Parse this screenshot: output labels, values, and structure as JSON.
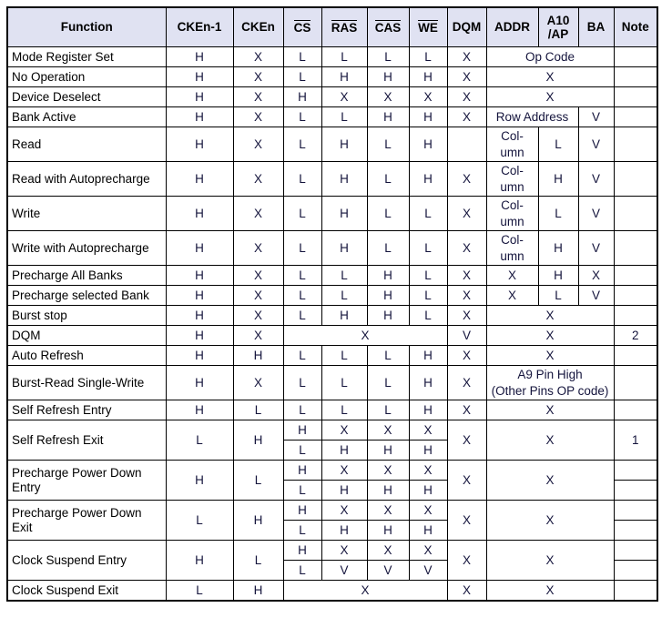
{
  "colors": {
    "header_bg": "#e0e2f2",
    "border": "#000000",
    "header_text": "#000000",
    "label_text": "#000000",
    "value_text": "#14143c"
  },
  "table": {
    "header": [
      {
        "t": "Function"
      },
      {
        "t": "CKEn-1"
      },
      {
        "t": "CKEn"
      },
      {
        "t": "CS",
        "ov": 1
      },
      {
        "t": "RAS",
        "ov": 1
      },
      {
        "t": "CAS",
        "ov": 1
      },
      {
        "t": "WE",
        "ov": 1
      },
      {
        "t": "DQM"
      },
      {
        "t": "ADDR"
      },
      {
        "t": "A10\n/AP"
      },
      {
        "t": "BA"
      },
      {
        "t": "Note"
      }
    ],
    "rows": [
      {
        "cells": [
          {
            "t": "Mode Register Set",
            "fn": 1
          },
          {
            "t": "H"
          },
          {
            "t": "X"
          },
          {
            "t": "L"
          },
          {
            "t": "L"
          },
          {
            "t": "L"
          },
          {
            "t": "L"
          },
          {
            "t": "X"
          },
          {
            "t": "Op Code",
            "cs": 3
          },
          {
            "t": ""
          }
        ]
      },
      {
        "cells": [
          {
            "t": "No Operation",
            "fn": 1
          },
          {
            "t": "H"
          },
          {
            "t": "X"
          },
          {
            "t": "L"
          },
          {
            "t": "H"
          },
          {
            "t": "H"
          },
          {
            "t": "H"
          },
          {
            "t": "X"
          },
          {
            "t": "X",
            "cs": 3
          },
          {
            "t": ""
          }
        ]
      },
      {
        "cells": [
          {
            "t": "Device Deselect",
            "fn": 1
          },
          {
            "t": "H"
          },
          {
            "t": "X"
          },
          {
            "t": "H"
          },
          {
            "t": "X"
          },
          {
            "t": "X"
          },
          {
            "t": "X"
          },
          {
            "t": "X"
          },
          {
            "t": "X",
            "cs": 3
          },
          {
            "t": ""
          }
        ]
      },
      {
        "cells": [
          {
            "t": "Bank Active",
            "fn": 1
          },
          {
            "t": "H"
          },
          {
            "t": "X"
          },
          {
            "t": "L"
          },
          {
            "t": "L"
          },
          {
            "t": "H"
          },
          {
            "t": "H"
          },
          {
            "t": "X"
          },
          {
            "t": "Row Address",
            "cs": 2
          },
          {
            "t": "V"
          },
          {
            "t": ""
          }
        ]
      },
      {
        "cells": [
          {
            "t": "Read",
            "fn": 1
          },
          {
            "t": "H"
          },
          {
            "t": "X"
          },
          {
            "t": "L"
          },
          {
            "t": "H"
          },
          {
            "t": "L"
          },
          {
            "t": "H"
          },
          {
            "t": ""
          },
          {
            "t": "Col-\numn"
          },
          {
            "t": "L"
          },
          {
            "t": "V"
          },
          {
            "t": ""
          }
        ]
      },
      {
        "cells": [
          {
            "t": "Read with Autoprecharge",
            "fn": 1
          },
          {
            "t": "H"
          },
          {
            "t": "X"
          },
          {
            "t": "L"
          },
          {
            "t": "H"
          },
          {
            "t": "L"
          },
          {
            "t": "H"
          },
          {
            "t": "X"
          },
          {
            "t": "Col-\numn"
          },
          {
            "t": "H"
          },
          {
            "t": "V"
          },
          {
            "t": ""
          }
        ]
      },
      {
        "cells": [
          {
            "t": "Write",
            "fn": 1
          },
          {
            "t": "H"
          },
          {
            "t": "X"
          },
          {
            "t": "L"
          },
          {
            "t": "H"
          },
          {
            "t": "L"
          },
          {
            "t": "L"
          },
          {
            "t": "X"
          },
          {
            "t": "Col-\numn"
          },
          {
            "t": "L"
          },
          {
            "t": "V"
          },
          {
            "t": ""
          }
        ]
      },
      {
        "cells": [
          {
            "t": "Write with Autoprecharge",
            "fn": 1
          },
          {
            "t": "H"
          },
          {
            "t": "X"
          },
          {
            "t": "L"
          },
          {
            "t": "H"
          },
          {
            "t": "L"
          },
          {
            "t": "L"
          },
          {
            "t": "X"
          },
          {
            "t": "Col-\numn"
          },
          {
            "t": "H"
          },
          {
            "t": "V"
          },
          {
            "t": ""
          }
        ]
      },
      {
        "cells": [
          {
            "t": "Precharge All Banks",
            "fn": 1
          },
          {
            "t": "H"
          },
          {
            "t": "X"
          },
          {
            "t": "L"
          },
          {
            "t": "L"
          },
          {
            "t": "H"
          },
          {
            "t": "L"
          },
          {
            "t": "X"
          },
          {
            "t": "X"
          },
          {
            "t": "H"
          },
          {
            "t": "X"
          },
          {
            "t": ""
          }
        ]
      },
      {
        "cells": [
          {
            "t": "Precharge selected Bank",
            "fn": 1
          },
          {
            "t": "H"
          },
          {
            "t": "X"
          },
          {
            "t": "L"
          },
          {
            "t": "L"
          },
          {
            "t": "H"
          },
          {
            "t": "L"
          },
          {
            "t": "X"
          },
          {
            "t": "X"
          },
          {
            "t": "L"
          },
          {
            "t": "V"
          },
          {
            "t": ""
          }
        ]
      },
      {
        "cells": [
          {
            "t": "Burst stop",
            "fn": 1
          },
          {
            "t": "H"
          },
          {
            "t": "X"
          },
          {
            "t": "L"
          },
          {
            "t": "H"
          },
          {
            "t": "H"
          },
          {
            "t": "L"
          },
          {
            "t": "X"
          },
          {
            "t": "X",
            "cs": 3
          },
          {
            "t": ""
          }
        ]
      },
      {
        "cells": [
          {
            "t": "DQM",
            "fn": 1
          },
          {
            "t": "H"
          },
          {
            "t": "X"
          },
          {
            "t": "X",
            "cs": 4
          },
          {
            "t": "V"
          },
          {
            "t": "X",
            "cs": 3
          },
          {
            "t": "2"
          }
        ]
      },
      {
        "cells": [
          {
            "t": "Auto Refresh",
            "fn": 1
          },
          {
            "t": "H"
          },
          {
            "t": "H"
          },
          {
            "t": "L"
          },
          {
            "t": "L"
          },
          {
            "t": "L"
          },
          {
            "t": "H"
          },
          {
            "t": "X"
          },
          {
            "t": "X",
            "cs": 3
          },
          {
            "t": ""
          }
        ]
      },
      {
        "cells": [
          {
            "t": "Burst-Read Single-Write",
            "fn": 1
          },
          {
            "t": "H"
          },
          {
            "t": "X"
          },
          {
            "t": "L"
          },
          {
            "t": "L"
          },
          {
            "t": "L"
          },
          {
            "t": "H"
          },
          {
            "t": "X"
          },
          {
            "t": "A9 Pin High\n(Other Pins OP code)",
            "cs": 3
          },
          {
            "t": ""
          }
        ]
      },
      {
        "cells": [
          {
            "t": "Self Refresh Entry",
            "fn": 1
          },
          {
            "t": "H"
          },
          {
            "t": "L"
          },
          {
            "t": "L"
          },
          {
            "t": "L"
          },
          {
            "t": "L"
          },
          {
            "t": "H"
          },
          {
            "t": "X"
          },
          {
            "t": "X",
            "cs": 3
          },
          {
            "t": ""
          }
        ]
      },
      {
        "cells": [
          {
            "t": "Self Refresh Exit",
            "fn": 1,
            "rs": 2
          },
          {
            "t": "L",
            "rs": 2
          },
          {
            "t": "H",
            "rs": 2
          },
          {
            "t": "H"
          },
          {
            "t": "X"
          },
          {
            "t": "X"
          },
          {
            "t": "X"
          },
          {
            "t": "X",
            "rs": 2
          },
          {
            "t": "X",
            "cs": 3,
            "rs": 2
          },
          {
            "t": "1",
            "rs": 2
          }
        ]
      },
      {
        "cells": [
          {
            "t": "L"
          },
          {
            "t": "H"
          },
          {
            "t": "H"
          },
          {
            "t": "H"
          }
        ]
      },
      {
        "cells": [
          {
            "t": "Precharge Power Down Entry",
            "fn": 1,
            "rs": 2
          },
          {
            "t": "H",
            "rs": 2
          },
          {
            "t": "L",
            "rs": 2
          },
          {
            "t": "H"
          },
          {
            "t": "X"
          },
          {
            "t": "X"
          },
          {
            "t": "X"
          },
          {
            "t": "X",
            "rs": 2
          },
          {
            "t": "X",
            "cs": 3,
            "rs": 2
          },
          {
            "t": ""
          }
        ]
      },
      {
        "cells": [
          {
            "t": "L"
          },
          {
            "t": "H"
          },
          {
            "t": "H"
          },
          {
            "t": "H"
          },
          {
            "t": ""
          }
        ]
      },
      {
        "cells": [
          {
            "t": "Precharge Power Down Exit",
            "fn": 1,
            "rs": 2
          },
          {
            "t": "L",
            "rs": 2
          },
          {
            "t": "H",
            "rs": 2
          },
          {
            "t": "H"
          },
          {
            "t": "X"
          },
          {
            "t": "X"
          },
          {
            "t": "X"
          },
          {
            "t": "X",
            "rs": 2
          },
          {
            "t": "X",
            "cs": 3,
            "rs": 2
          },
          {
            "t": ""
          }
        ]
      },
      {
        "cells": [
          {
            "t": "L"
          },
          {
            "t": "H"
          },
          {
            "t": "H"
          },
          {
            "t": "H"
          },
          {
            "t": ""
          }
        ]
      },
      {
        "cells": [
          {
            "t": "Clock Suspend Entry",
            "fn": 1,
            "rs": 2
          },
          {
            "t": "H",
            "rs": 2
          },
          {
            "t": "L",
            "rs": 2
          },
          {
            "t": "H"
          },
          {
            "t": "X"
          },
          {
            "t": "X"
          },
          {
            "t": "X"
          },
          {
            "t": "X",
            "rs": 2
          },
          {
            "t": "X",
            "cs": 3,
            "rs": 2
          },
          {
            "t": ""
          }
        ]
      },
      {
        "cells": [
          {
            "t": "L"
          },
          {
            "t": "V"
          },
          {
            "t": "V"
          },
          {
            "t": "V"
          },
          {
            "t": ""
          }
        ]
      },
      {
        "cells": [
          {
            "t": "Clock Suspend Exit",
            "fn": 1
          },
          {
            "t": "L"
          },
          {
            "t": "H"
          },
          {
            "t": "X",
            "cs": 4
          },
          {
            "t": "X"
          },
          {
            "t": "X",
            "cs": 3
          },
          {
            "t": ""
          }
        ]
      }
    ]
  }
}
